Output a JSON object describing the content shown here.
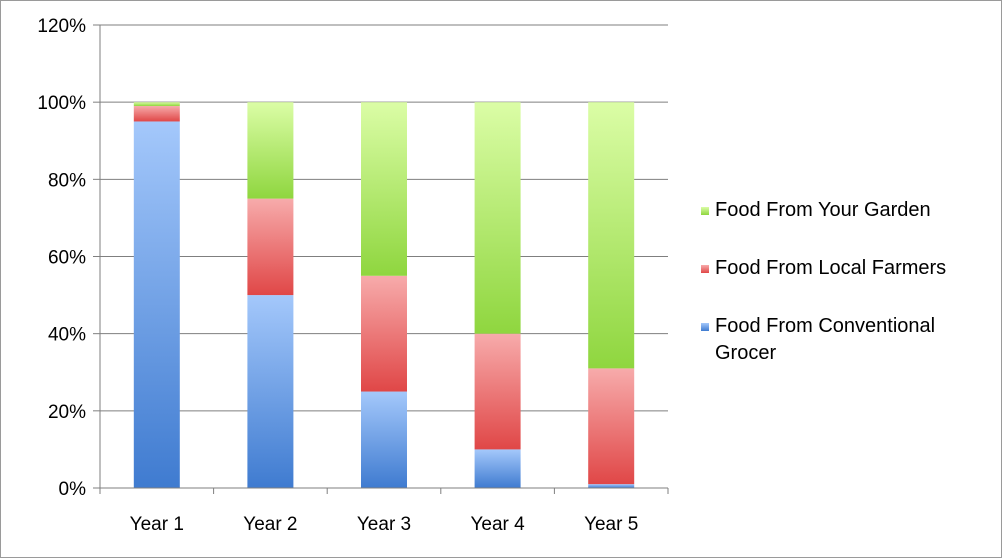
{
  "chart_data": {
    "type": "bar",
    "stacked": true,
    "categories": [
      "Year 1",
      "Year 2",
      "Year 3",
      "Year 4",
      "Year 5"
    ],
    "series": [
      {
        "name": "Food From Conventional Grocer",
        "values": [
          95,
          50,
          25,
          10,
          1
        ],
        "color": "#5b93dc",
        "color_light": "#a4c8fb",
        "color_dark": "#3f7bd0"
      },
      {
        "name": "Food From Local Farmers",
        "values": [
          4,
          25,
          30,
          30,
          30
        ],
        "color": "#e85f5f",
        "color_light": "#f7abab",
        "color_dark": "#e04747"
      },
      {
        "name": "Food From Your Garden",
        "values": [
          1,
          25,
          45,
          60,
          69
        ],
        "color": "#a6e05a",
        "color_light": "#dbfda6",
        "color_dark": "#8fd63f"
      }
    ],
    "y_ticks": [
      "0%",
      "20%",
      "40%",
      "60%",
      "80%",
      "100%",
      "120%"
    ],
    "ylim": [
      0,
      120
    ],
    "grid": true,
    "legend_position": "right",
    "legend_order": [
      "Food From Your Garden",
      "Food From Local Farmers",
      "Food From Conventional Grocer"
    ]
  }
}
